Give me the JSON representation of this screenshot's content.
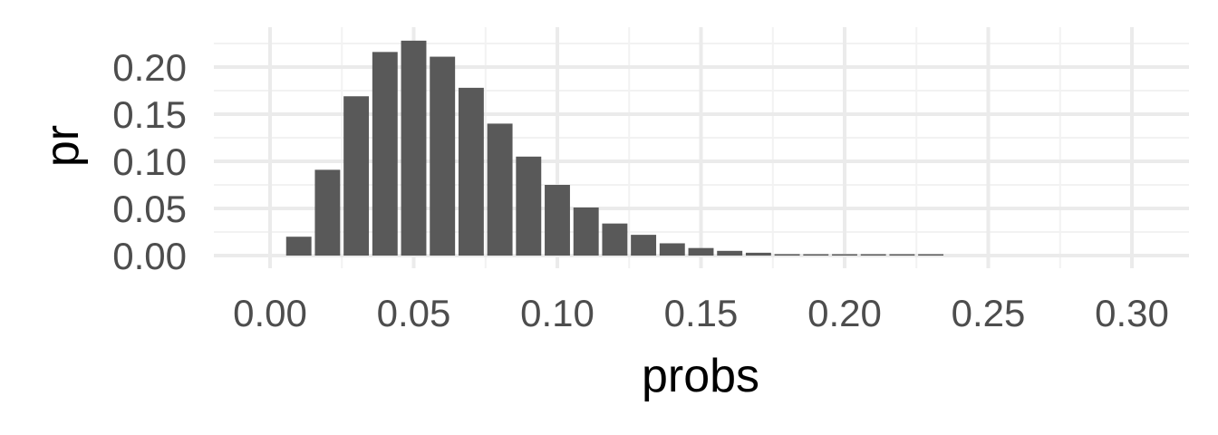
{
  "chart_data": {
    "type": "bar",
    "title": "",
    "xlabel": "probs",
    "ylabel": "pr",
    "x": [
      0.01,
      0.02,
      0.03,
      0.04,
      0.05,
      0.06,
      0.07,
      0.08,
      0.09,
      0.1,
      0.11,
      0.12,
      0.13,
      0.14,
      0.15,
      0.16,
      0.17,
      0.18,
      0.19,
      0.2,
      0.21,
      0.22,
      0.23
    ],
    "values": [
      0.02,
      0.091,
      0.169,
      0.216,
      0.228,
      0.211,
      0.178,
      0.14,
      0.105,
      0.075,
      0.051,
      0.034,
      0.022,
      0.013,
      0.008,
      0.005,
      0.003,
      0.0015,
      0.001,
      0.0005,
      0.0003,
      0.0002,
      0.0001
    ],
    "xlim": [
      -0.04,
      0.32
    ],
    "ylim": [
      0,
      0.228
    ],
    "xticks": [
      0.0,
      0.05,
      0.1,
      0.15,
      0.2,
      0.25,
      0.3
    ],
    "xtick_labels": [
      "0.00",
      "0.05",
      "0.10",
      "0.15",
      "0.20",
      "0.25",
      "0.30"
    ],
    "yticks": [
      0.0,
      0.05,
      0.1,
      0.15,
      0.2
    ],
    "ytick_labels": [
      "0.00",
      "0.05",
      "0.10",
      "0.15",
      "0.20"
    ],
    "bar_width": 0.0088,
    "grid": true,
    "colors": {
      "bar": "#595959",
      "grid_major": "#ebebeb",
      "grid_minor": "#f2f2f2"
    }
  }
}
